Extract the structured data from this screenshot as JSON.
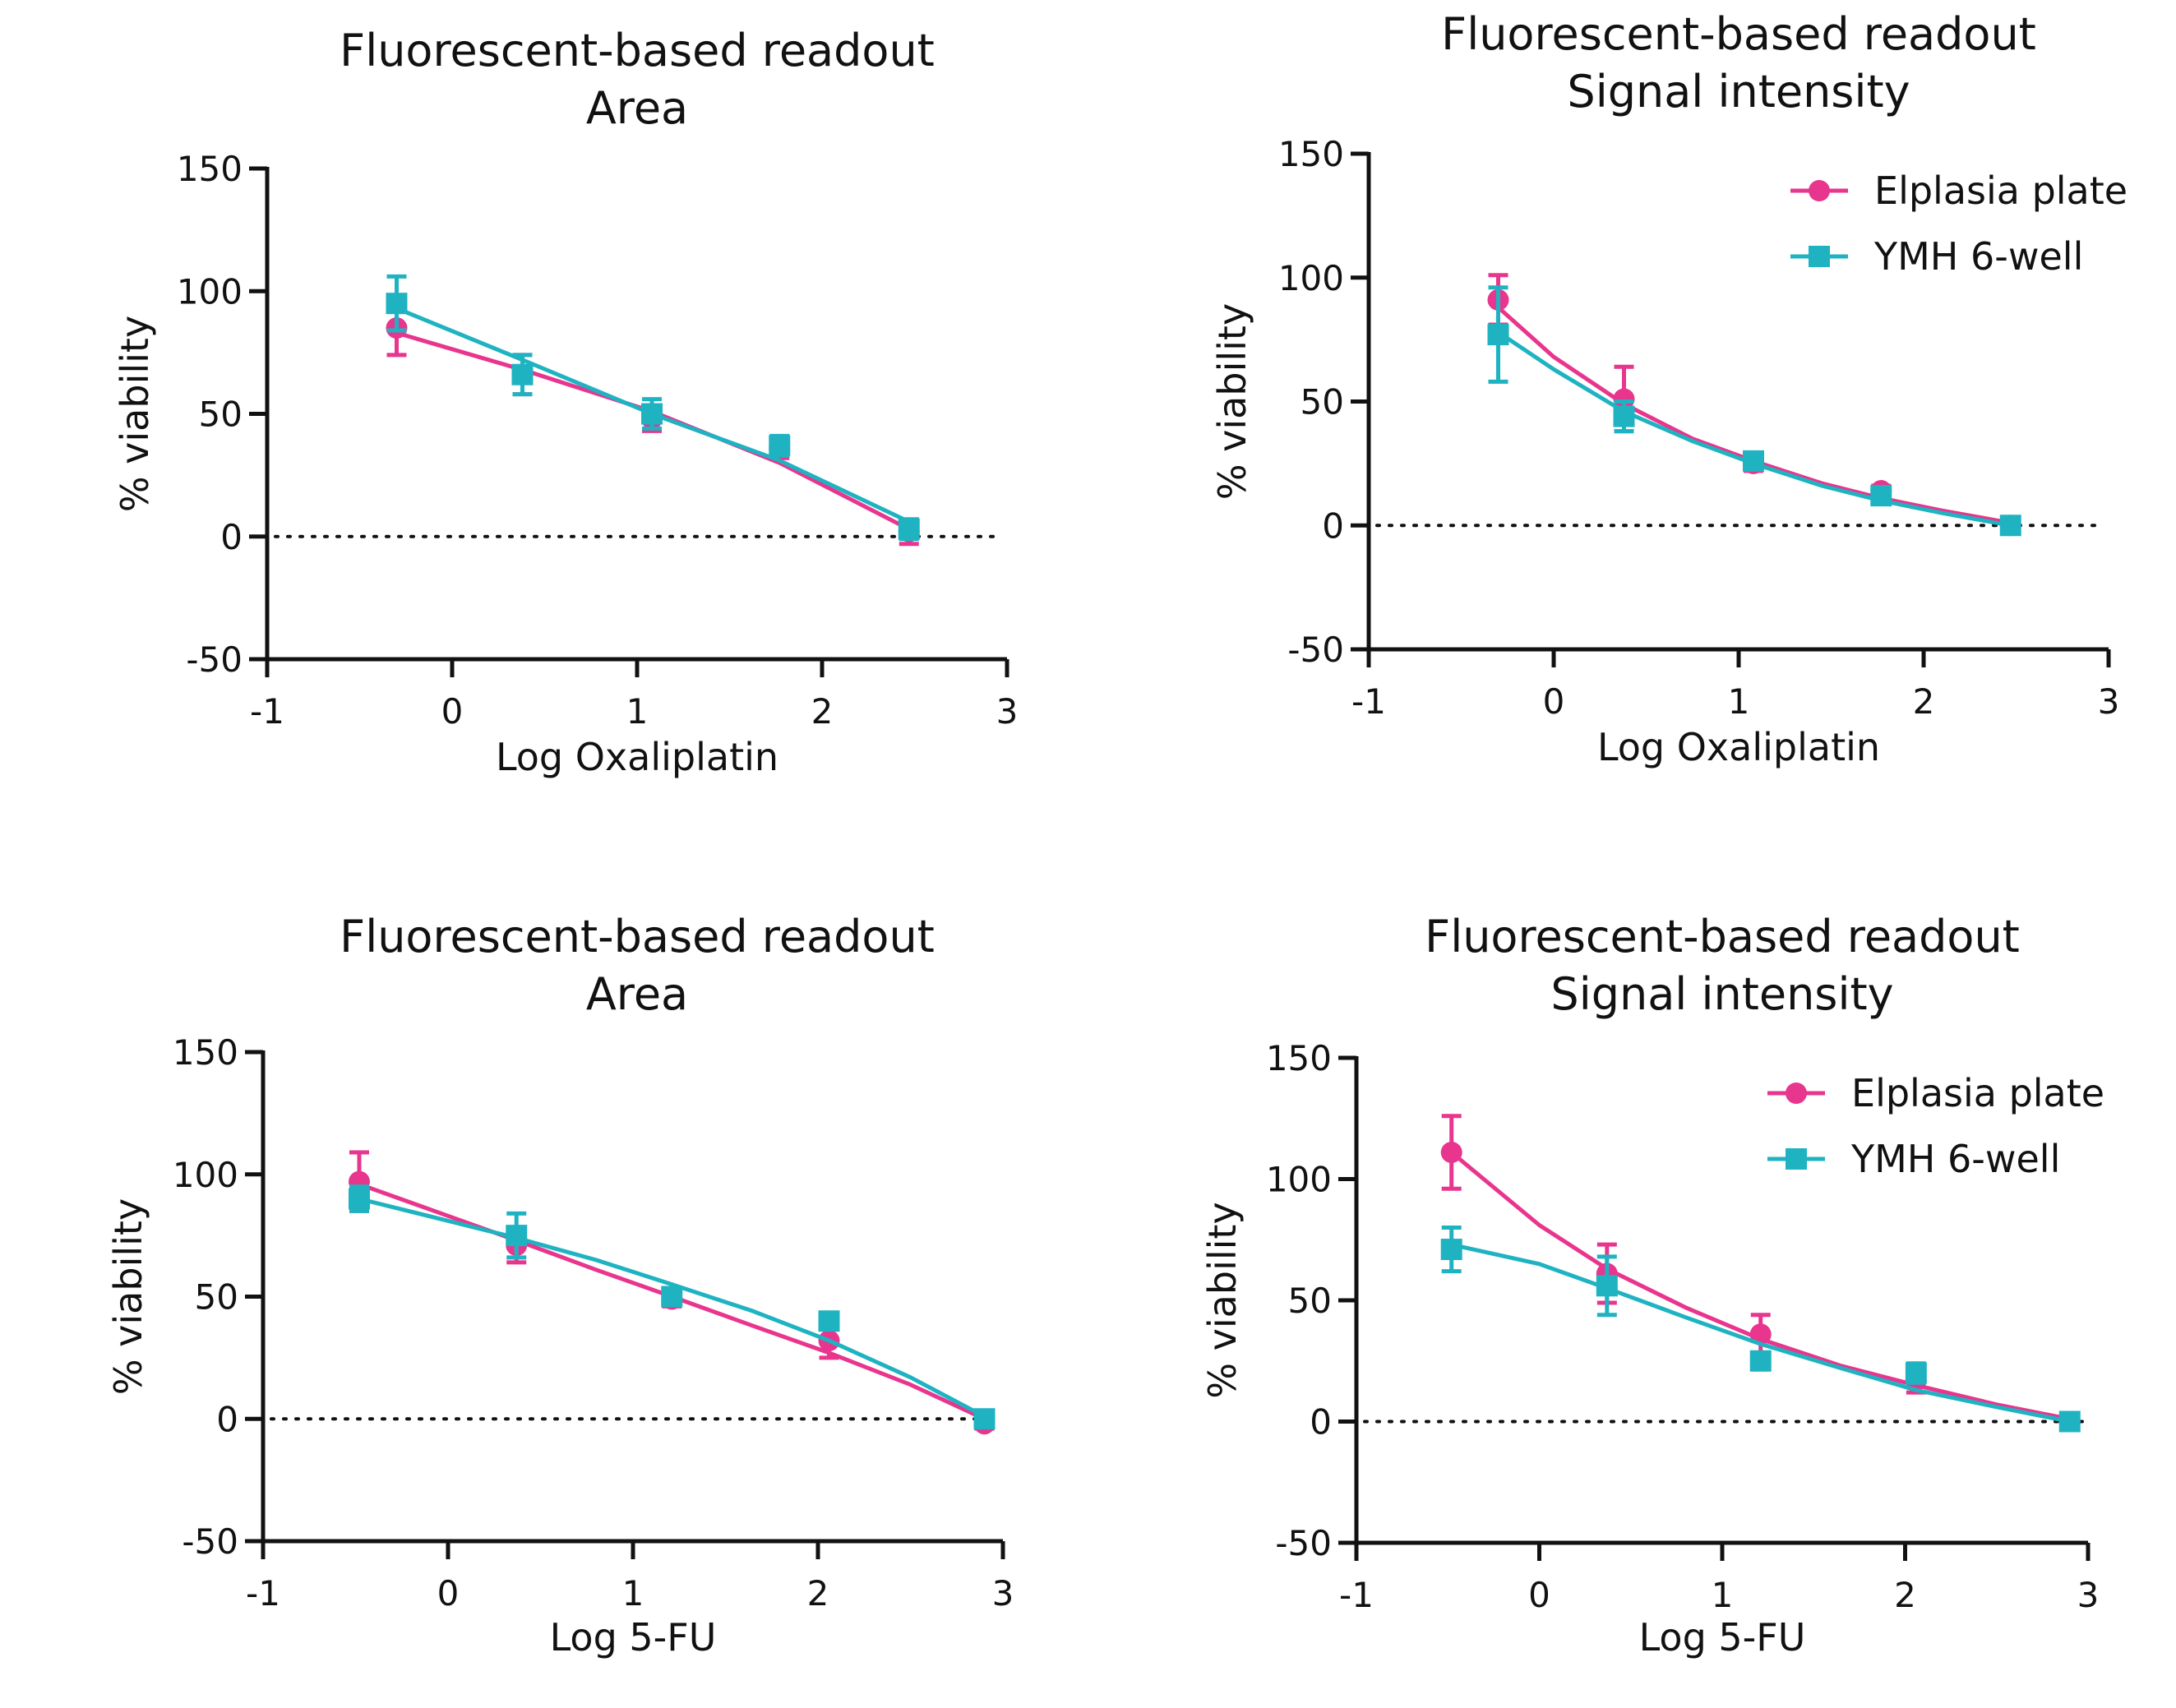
{
  "colors": {
    "elplasia": "#e8358d",
    "ymh": "#1fb3c2",
    "axis": "#111111"
  },
  "chart_data": [
    {
      "type": "line",
      "title": "Fluorescent-based readout",
      "subtitle": "Area",
      "xlabel": "Log Oxaliplatin",
      "ylabel": "% viability",
      "xlim": [
        -1,
        3
      ],
      "ylim": [
        -50,
        150
      ],
      "xticks": [
        "-1",
        "0",
        "1",
        "2",
        "3"
      ],
      "yticks": [
        "150",
        "100",
        "50",
        "0",
        "-50"
      ],
      "reference_line_y": 0,
      "legend": null,
      "series": [
        {
          "name": "Elplasia plate",
          "color": "#e8358d",
          "marker": "circle",
          "x": [
            -0.3,
            0.38,
            1.08,
            1.77,
            2.47
          ],
          "y": [
            85,
            66,
            48,
            36,
            2
          ],
          "err": [
            11,
            8,
            5,
            4,
            5
          ],
          "fit_x": [
            -0.3,
            0.38,
            1.08,
            1.77,
            2.47
          ],
          "fit_y": [
            83,
            68,
            51,
            30,
            3
          ]
        },
        {
          "name": "YMH 6-well",
          "color": "#1fb3c2",
          "marker": "square",
          "x": [
            -0.3,
            0.38,
            1.08,
            1.77,
            2.47
          ],
          "y": [
            95,
            66,
            50,
            37,
            3
          ],
          "err": [
            11,
            8,
            6,
            4,
            4
          ],
          "fit_x": [
            -0.3,
            0.38,
            1.08,
            1.77,
            2.47
          ],
          "fit_y": [
            93,
            72,
            50,
            31,
            6
          ]
        }
      ]
    },
    {
      "type": "line",
      "title": "Fluorescent-based readout",
      "subtitle": "Signal intensity",
      "xlabel": "Log Oxaliplatin",
      "ylabel": "% viability",
      "xlim": [
        -1,
        3
      ],
      "ylim": [
        -50,
        150
      ],
      "xticks": [
        "-1",
        "0",
        "1",
        "2",
        "3"
      ],
      "yticks": [
        "150",
        "100",
        "50",
        "0",
        "-50"
      ],
      "reference_line_y": 0,
      "legend": "top-right",
      "series": [
        {
          "name": "Elplasia plate",
          "color": "#e8358d",
          "marker": "circle",
          "x": [
            -0.3,
            0.38,
            1.08,
            1.77,
            2.47
          ],
          "y": [
            91,
            51,
            25,
            14,
            0
          ],
          "err": [
            10,
            13,
            3,
            2,
            2
          ],
          "fit_x": [
            -0.3,
            0.0,
            0.38,
            0.75,
            1.08,
            1.45,
            1.77,
            2.1,
            2.47
          ],
          "fit_y": [
            88,
            68,
            49,
            35,
            26,
            17,
            11,
            6,
            1
          ]
        },
        {
          "name": "YMH 6-well",
          "color": "#1fb3c2",
          "marker": "square",
          "x": [
            -0.3,
            0.38,
            1.08,
            1.77,
            2.47
          ],
          "y": [
            77,
            44,
            26,
            12,
            0
          ],
          "err": [
            19,
            6,
            3,
            2,
            2
          ],
          "fit_x": [
            -0.3,
            0.0,
            0.38,
            0.75,
            1.08,
            1.45,
            1.77,
            2.1,
            2.47
          ],
          "fit_y": [
            78,
            63,
            46,
            34,
            25,
            16,
            10,
            5,
            0
          ]
        }
      ]
    },
    {
      "type": "line",
      "title": "Fluorescent-based readout",
      "subtitle": "Area",
      "xlabel": "Log 5-FU",
      "ylabel": "% viability",
      "xlim": [
        -1,
        3
      ],
      "ylim": [
        -50,
        150
      ],
      "xticks": [
        "-1",
        "0",
        "1",
        "2",
        "3"
      ],
      "yticks": [
        "150",
        "100",
        "50",
        "0",
        "-50"
      ],
      "reference_line_y": 0,
      "legend": null,
      "series": [
        {
          "name": "Elplasia plate",
          "color": "#e8358d",
          "marker": "circle",
          "x": [
            -0.48,
            0.37,
            1.21,
            2.06,
            2.9
          ],
          "y": [
            97,
            71,
            49,
            32,
            -2
          ],
          "err": [
            12,
            7,
            3,
            7,
            2
          ],
          "fit_x": [
            -0.48,
            0.0,
            0.37,
            0.8,
            1.21,
            1.65,
            2.06,
            2.5,
            2.9
          ],
          "fit_y": [
            96,
            83,
            73,
            61,
            50,
            38,
            27,
            14,
            0
          ]
        },
        {
          "name": "YMH 6-well",
          "color": "#1fb3c2",
          "marker": "square",
          "x": [
            -0.48,
            0.37,
            1.21,
            2.06,
            2.9
          ],
          "y": [
            90,
            75,
            50,
            40,
            0
          ],
          "err": [
            5,
            9,
            3,
            3,
            2
          ],
          "fit_x": [
            -0.48,
            0.0,
            0.37,
            0.8,
            1.21,
            1.65,
            2.06,
            2.5,
            2.9
          ],
          "fit_y": [
            90,
            81,
            74,
            65,
            55,
            44,
            32,
            17,
            1
          ]
        }
      ]
    },
    {
      "type": "line",
      "title": "Fluorescent-based readout",
      "subtitle": "Signal intensity",
      "xlabel": "Log 5-FU",
      "ylabel": "% viability",
      "xlim": [
        -1,
        3
      ],
      "ylim": [
        -50,
        150
      ],
      "xticks": [
        "-1",
        "0",
        "1",
        "2",
        "3"
      ],
      "yticks": [
        "150",
        "100",
        "50",
        "0",
        "-50"
      ],
      "reference_line_y": 0,
      "legend": "top-right",
      "series": [
        {
          "name": "Elplasia plate",
          "color": "#e8358d",
          "marker": "circle",
          "x": [
            -0.48,
            0.37,
            1.21,
            2.06,
            2.9
          ],
          "y": [
            111,
            61,
            36,
            17,
            0
          ],
          "err": [
            15,
            12,
            8,
            5,
            1
          ],
          "fit_x": [
            -0.48,
            0.0,
            0.37,
            0.8,
            1.21,
            1.65,
            2.06,
            2.5,
            2.9
          ],
          "fit_y": [
            111,
            81,
            63,
            47,
            34,
            23,
            15,
            7,
            1
          ]
        },
        {
          "name": "YMH 6-well",
          "color": "#1fb3c2",
          "marker": "square",
          "x": [
            -0.48,
            0.37,
            1.21,
            2.06,
            2.9
          ],
          "y": [
            71,
            56,
            25,
            20,
            0
          ],
          "err": [
            9,
            12,
            3,
            4,
            1
          ],
          "fit_x": [
            -0.48,
            0.0,
            0.37,
            0.8,
            1.21,
            1.65,
            2.06,
            2.5,
            2.9
          ],
          "fit_y": [
            73,
            65,
            55,
            43,
            32,
            22,
            13,
            6,
            0
          ]
        }
      ]
    }
  ]
}
